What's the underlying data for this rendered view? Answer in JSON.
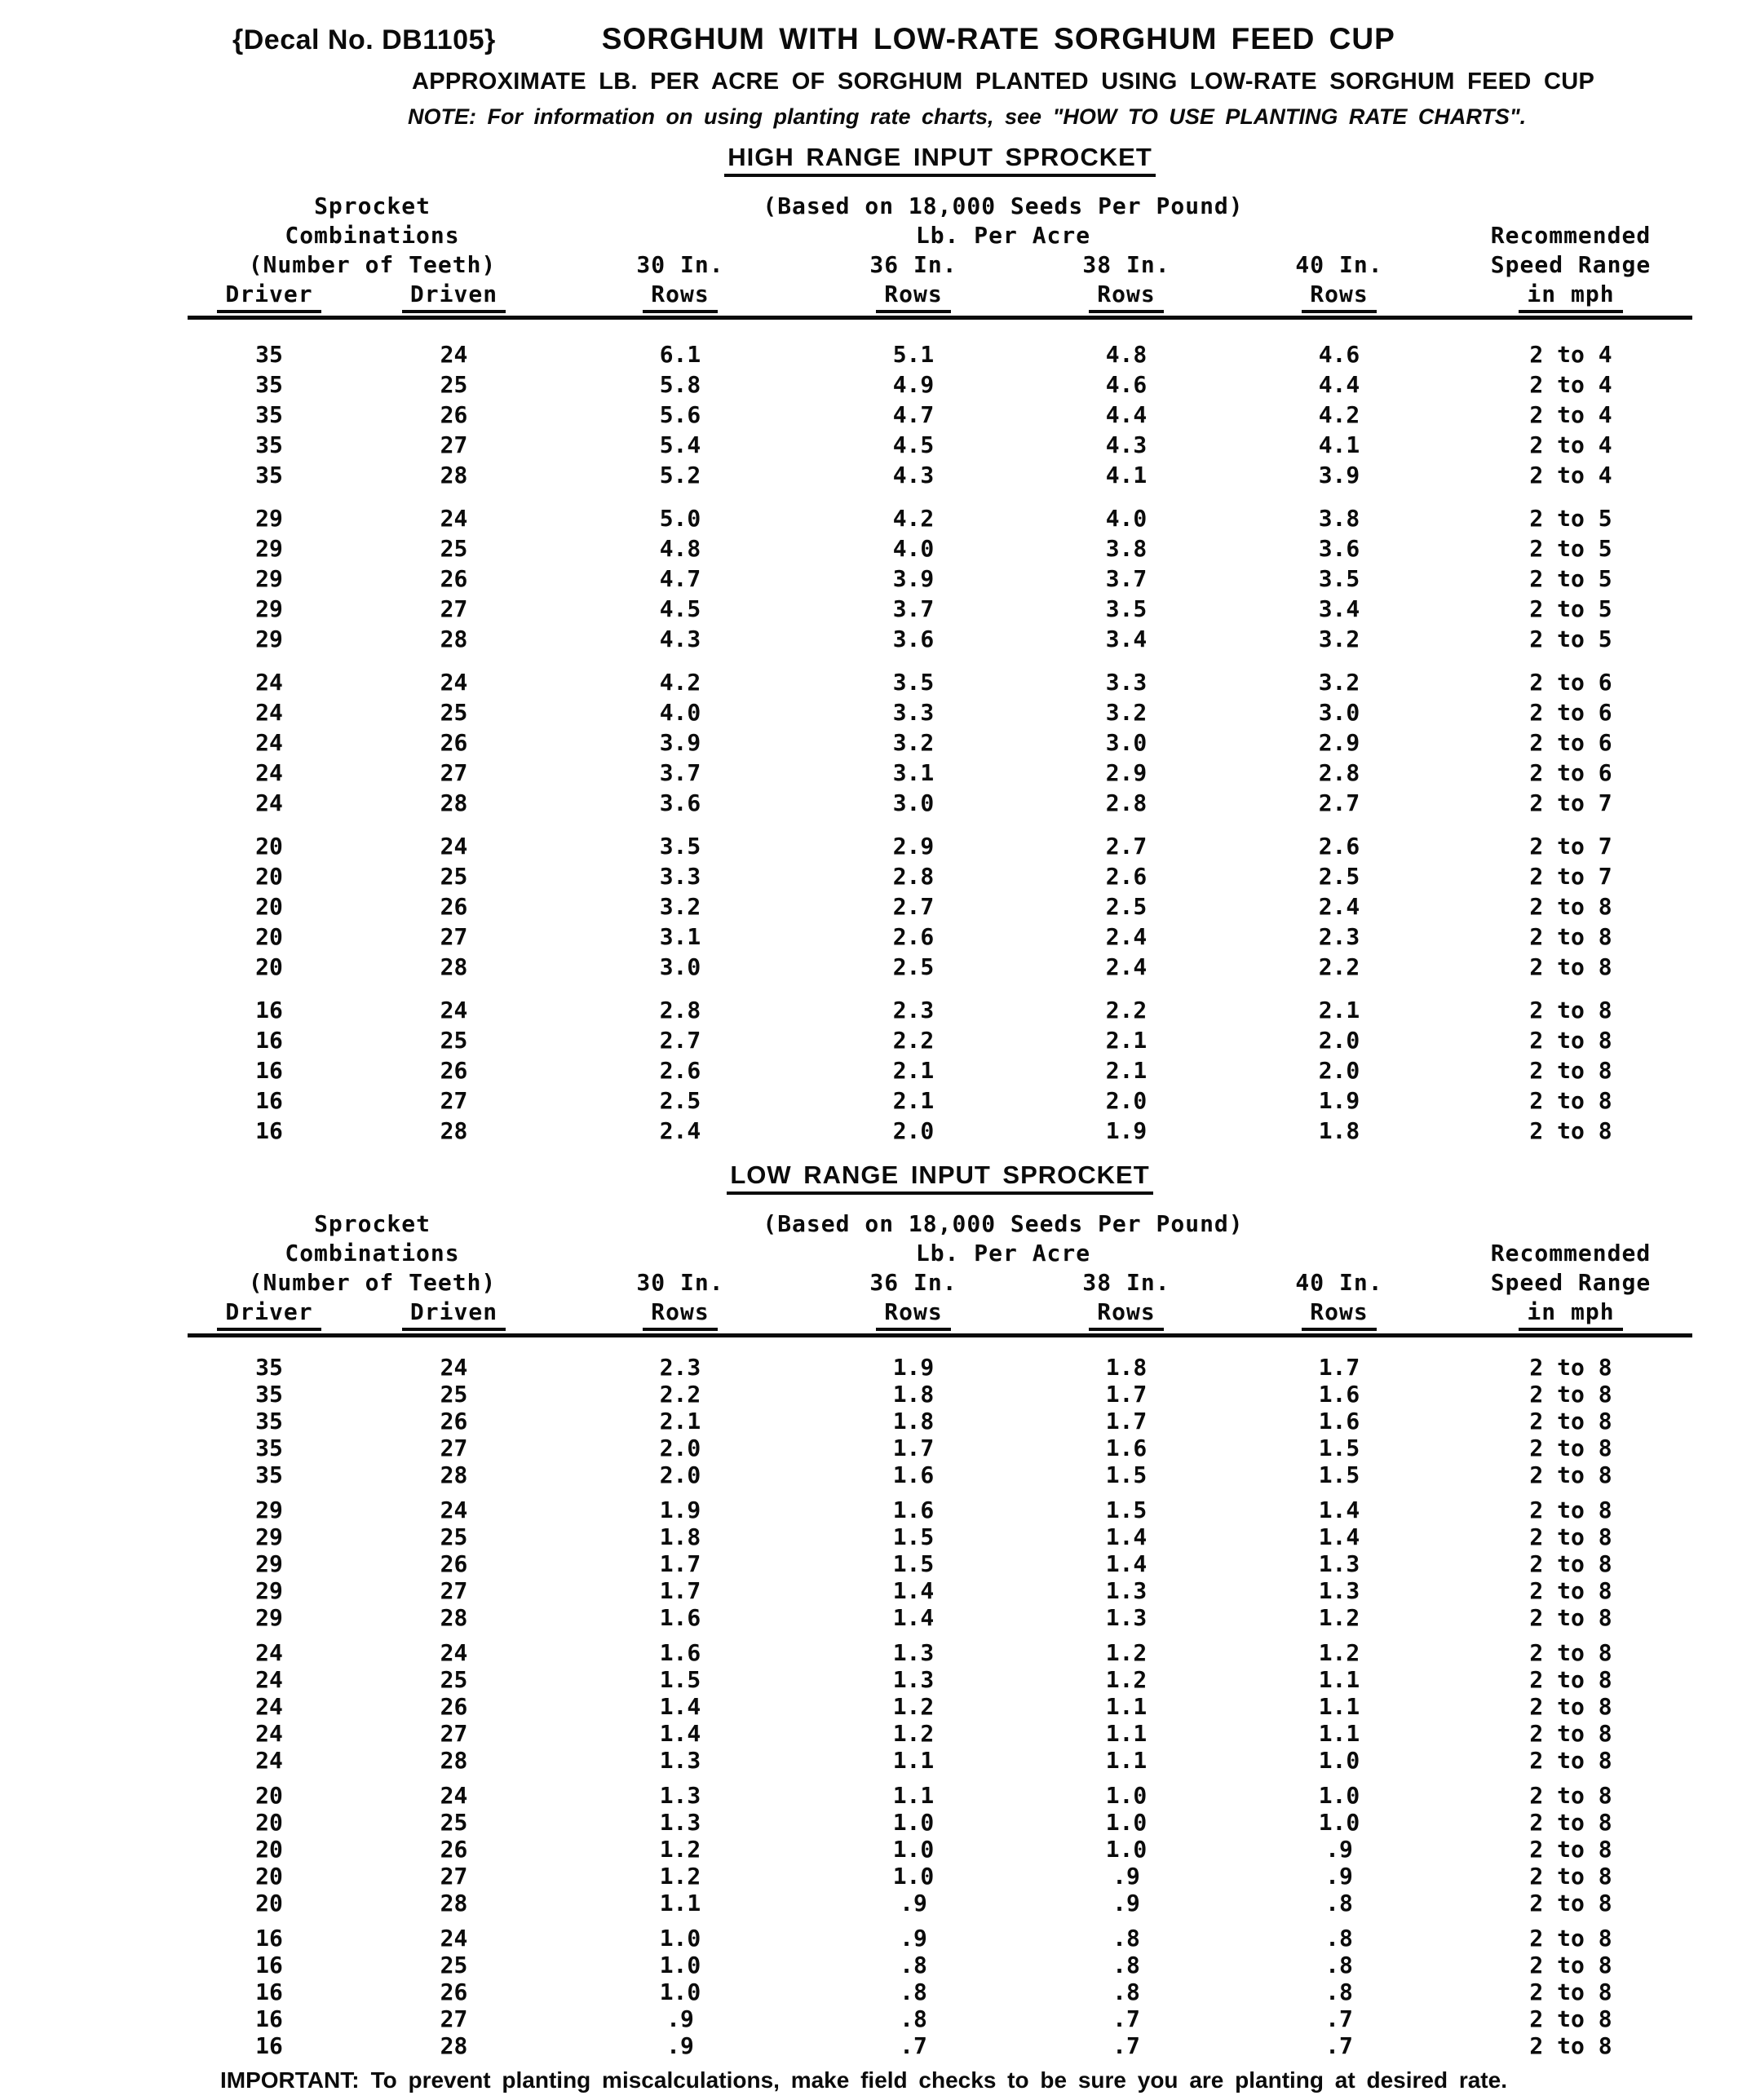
{
  "header": {
    "decal": "{Decal No. DB1105}",
    "title": "SORGHUM WITH LOW-RATE SORGHUM FEED CUP",
    "subtitle": "APPROXIMATE LB. PER ACRE OF SORGHUM PLANTED USING LOW-RATE SORGHUM FEED CUP",
    "note": "NOTE: For information on using planting rate charts, see \"HOW TO USE PLANTING RATE CHARTS\"."
  },
  "table_header": {
    "sprocket_line1": "Sprocket",
    "sprocket_line2": "Combinations",
    "sprocket_line3": "(Number of Teeth)",
    "driver": "Driver",
    "driven": "Driven",
    "basis": "(Based on 18,000 Seeds Per Pound)",
    "lb_per_acre": "Lb. Per Acre",
    "col_30in": "30 In.",
    "col_36in": "36 In.",
    "col_38in": "38 In.",
    "col_40in": "40 In.",
    "rows_label": "Rows",
    "speed_line1": "Recommended",
    "speed_line2": "Speed Range",
    "speed_line3": "in mph"
  },
  "tables": [
    {
      "section_title": "HIGH RANGE INPUT SPROCKET",
      "blocks": [
        [
          [
            "35",
            "24",
            "6.1",
            "5.1",
            "4.8",
            "4.6",
            "2 to 4"
          ],
          [
            "35",
            "25",
            "5.8",
            "4.9",
            "4.6",
            "4.4",
            "2 to 4"
          ],
          [
            "35",
            "26",
            "5.6",
            "4.7",
            "4.4",
            "4.2",
            "2 to 4"
          ],
          [
            "35",
            "27",
            "5.4",
            "4.5",
            "4.3",
            "4.1",
            "2 to 4"
          ],
          [
            "35",
            "28",
            "5.2",
            "4.3",
            "4.1",
            "3.9",
            "2 to 4"
          ]
        ],
        [
          [
            "29",
            "24",
            "5.0",
            "4.2",
            "4.0",
            "3.8",
            "2 to 5"
          ],
          [
            "29",
            "25",
            "4.8",
            "4.0",
            "3.8",
            "3.6",
            "2 to 5"
          ],
          [
            "29",
            "26",
            "4.7",
            "3.9",
            "3.7",
            "3.5",
            "2 to 5"
          ],
          [
            "29",
            "27",
            "4.5",
            "3.7",
            "3.5",
            "3.4",
            "2 to 5"
          ],
          [
            "29",
            "28",
            "4.3",
            "3.6",
            "3.4",
            "3.2",
            "2 to 5"
          ]
        ],
        [
          [
            "24",
            "24",
            "4.2",
            "3.5",
            "3.3",
            "3.2",
            "2 to 6"
          ],
          [
            "24",
            "25",
            "4.0",
            "3.3",
            "3.2",
            "3.0",
            "2 to 6"
          ],
          [
            "24",
            "26",
            "3.9",
            "3.2",
            "3.0",
            "2.9",
            "2 to 6"
          ],
          [
            "24",
            "27",
            "3.7",
            "3.1",
            "2.9",
            "2.8",
            "2 to 6"
          ],
          [
            "24",
            "28",
            "3.6",
            "3.0",
            "2.8",
            "2.7",
            "2 to 7"
          ]
        ],
        [
          [
            "20",
            "24",
            "3.5",
            "2.9",
            "2.7",
            "2.6",
            "2 to 7"
          ],
          [
            "20",
            "25",
            "3.3",
            "2.8",
            "2.6",
            "2.5",
            "2 to 7"
          ],
          [
            "20",
            "26",
            "3.2",
            "2.7",
            "2.5",
            "2.4",
            "2 to 8"
          ],
          [
            "20",
            "27",
            "3.1",
            "2.6",
            "2.4",
            "2.3",
            "2 to 8"
          ],
          [
            "20",
            "28",
            "3.0",
            "2.5",
            "2.4",
            "2.2",
            "2 to 8"
          ]
        ],
        [
          [
            "16",
            "24",
            "2.8",
            "2.3",
            "2.2",
            "2.1",
            "2 to 8"
          ],
          [
            "16",
            "25",
            "2.7",
            "2.2",
            "2.1",
            "2.0",
            "2 to 8"
          ],
          [
            "16",
            "26",
            "2.6",
            "2.1",
            "2.1",
            "2.0",
            "2 to 8"
          ],
          [
            "16",
            "27",
            "2.5",
            "2.1",
            "2.0",
            "1.9",
            "2 to 8"
          ],
          [
            "16",
            "28",
            "2.4",
            "2.0",
            "1.9",
            "1.8",
            "2 to 8"
          ]
        ]
      ]
    },
    {
      "section_title": "LOW RANGE INPUT SPROCKET",
      "blocks": [
        [
          [
            "35",
            "24",
            "2.3",
            "1.9",
            "1.8",
            "1.7",
            "2 to 8"
          ],
          [
            "35",
            "25",
            "2.2",
            "1.8",
            "1.7",
            "1.6",
            "2 to 8"
          ],
          [
            "35",
            "26",
            "2.1",
            "1.8",
            "1.7",
            "1.6",
            "2 to 8"
          ],
          [
            "35",
            "27",
            "2.0",
            "1.7",
            "1.6",
            "1.5",
            "2 to 8"
          ],
          [
            "35",
            "28",
            "2.0",
            "1.6",
            "1.5",
            "1.5",
            "2 to 8"
          ]
        ],
        [
          [
            "29",
            "24",
            "1.9",
            "1.6",
            "1.5",
            "1.4",
            "2 to 8"
          ],
          [
            "29",
            "25",
            "1.8",
            "1.5",
            "1.4",
            "1.4",
            "2 to 8"
          ],
          [
            "29",
            "26",
            "1.7",
            "1.5",
            "1.4",
            "1.3",
            "2 to 8"
          ],
          [
            "29",
            "27",
            "1.7",
            "1.4",
            "1.3",
            "1.3",
            "2 to 8"
          ],
          [
            "29",
            "28",
            "1.6",
            "1.4",
            "1.3",
            "1.2",
            "2 to 8"
          ]
        ],
        [
          [
            "24",
            "24",
            "1.6",
            "1.3",
            "1.2",
            "1.2",
            "2 to 8"
          ],
          [
            "24",
            "25",
            "1.5",
            "1.3",
            "1.2",
            "1.1",
            "2 to 8"
          ],
          [
            "24",
            "26",
            "1.4",
            "1.2",
            "1.1",
            "1.1",
            "2 to 8"
          ],
          [
            "24",
            "27",
            "1.4",
            "1.2",
            "1.1",
            "1.1",
            "2 to 8"
          ],
          [
            "24",
            "28",
            "1.3",
            "1.1",
            "1.1",
            "1.0",
            "2 to 8"
          ]
        ],
        [
          [
            "20",
            "24",
            "1.3",
            "1.1",
            "1.0",
            "1.0",
            "2 to 8"
          ],
          [
            "20",
            "25",
            "1.3",
            "1.0",
            "1.0",
            "1.0",
            "2 to 8"
          ],
          [
            "20",
            "26",
            "1.2",
            "1.0",
            "1.0",
            ".9",
            "2 to 8"
          ],
          [
            "20",
            "27",
            "1.2",
            "1.0",
            ".9",
            ".9",
            "2 to 8"
          ],
          [
            "20",
            "28",
            "1.1",
            ".9",
            ".9",
            ".8",
            "2 to 8"
          ]
        ],
        [
          [
            "16",
            "24",
            "1.0",
            ".9",
            ".8",
            ".8",
            "2 to 8"
          ],
          [
            "16",
            "25",
            "1.0",
            ".8",
            ".8",
            ".8",
            "2 to 8"
          ],
          [
            "16",
            "26",
            "1.0",
            ".8",
            ".8",
            ".8",
            "2 to 8"
          ],
          [
            "16",
            "27",
            ".9",
            ".8",
            ".7",
            ".7",
            "2 to 8"
          ],
          [
            "16",
            "28",
            ".9",
            ".7",
            ".7",
            ".7",
            "2 to 8"
          ]
        ]
      ]
    }
  ],
  "footer": {
    "label": "IMPORTANT:",
    "text": "To prevent planting miscalculations, make field checks to be sure you are planting at desired rate."
  }
}
